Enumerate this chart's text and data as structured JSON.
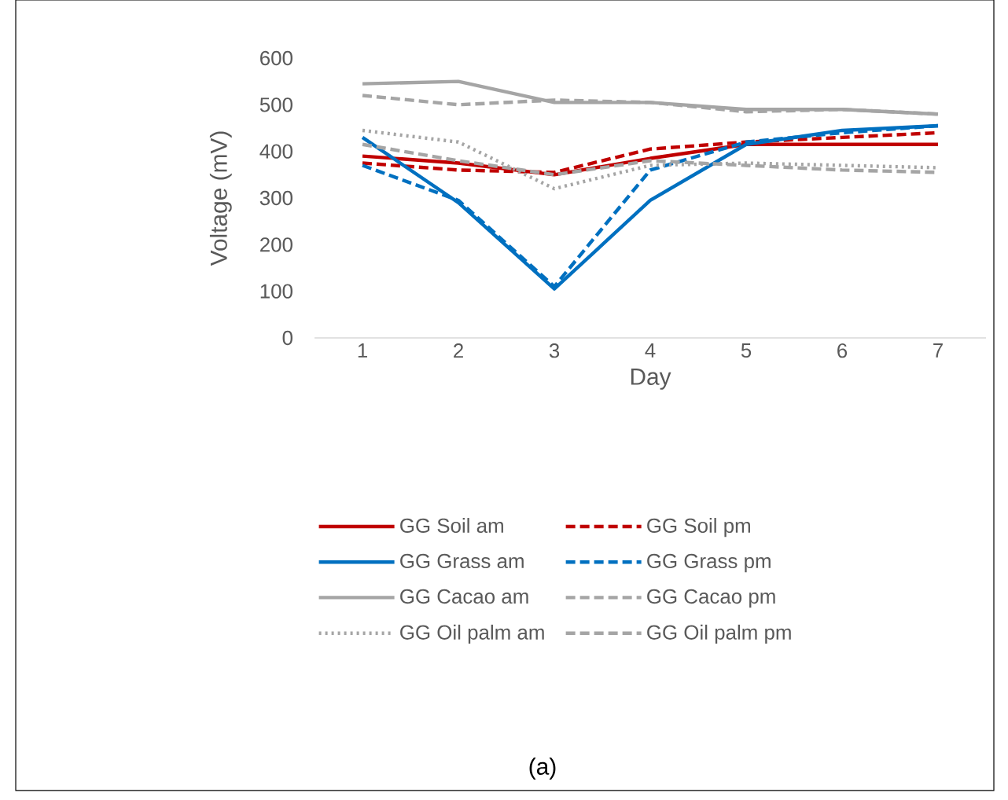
{
  "chart_data": {
    "type": "line",
    "xlabel": "Day",
    "ylabel": "Voltage (mV)",
    "x": [
      1,
      2,
      3,
      4,
      5,
      6,
      7
    ],
    "xlim": [
      0.5,
      7.5
    ],
    "xticks": [
      1,
      2,
      3,
      4,
      5,
      6,
      7
    ],
    "ylim": [
      0,
      600
    ],
    "yticks": [
      0,
      100,
      200,
      300,
      400,
      500,
      600
    ],
    "grid": false,
    "legend": "bottom",
    "marker": "none",
    "annotations": [
      "(a)"
    ],
    "series": [
      {
        "name": "GG Soil am",
        "color": "#c00000",
        "line_style": "solid",
        "values": [
          390,
          375,
          350,
          385,
          415,
          415,
          415
        ]
      },
      {
        "name": "GG Soil pm",
        "color": "#c00000",
        "line_style": "dashed",
        "values": [
          375,
          360,
          355,
          405,
          420,
          430,
          440
        ]
      },
      {
        "name": "GG Grass am",
        "color": "#0070c0",
        "line_style": "solid",
        "values": [
          430,
          290,
          105,
          295,
          415,
          445,
          455
        ]
      },
      {
        "name": "GG Grass pm",
        "color": "#0070c0",
        "line_style": "dashed",
        "values": [
          370,
          295,
          110,
          360,
          420,
          440,
          455
        ]
      },
      {
        "name": "GG Cacao am",
        "color": "#a5a5a5",
        "line_style": "solid",
        "values": [
          545,
          550,
          505,
          505,
          490,
          490,
          480
        ]
      },
      {
        "name": "GG Cacao pm",
        "color": "#a5a5a5",
        "line_style": "dashed",
        "values": [
          520,
          500,
          510,
          505,
          485,
          490,
          480
        ]
      },
      {
        "name": "GG Oil palm am",
        "color": "#a5a5a5",
        "line_style": "dotted",
        "values": [
          445,
          420,
          320,
          370,
          375,
          370,
          365
        ]
      },
      {
        "name": "GG Oil palm pm",
        "color": "#a5a5a5",
        "line_style": "dashed",
        "values": [
          415,
          380,
          350,
          380,
          370,
          360,
          355
        ]
      }
    ]
  }
}
